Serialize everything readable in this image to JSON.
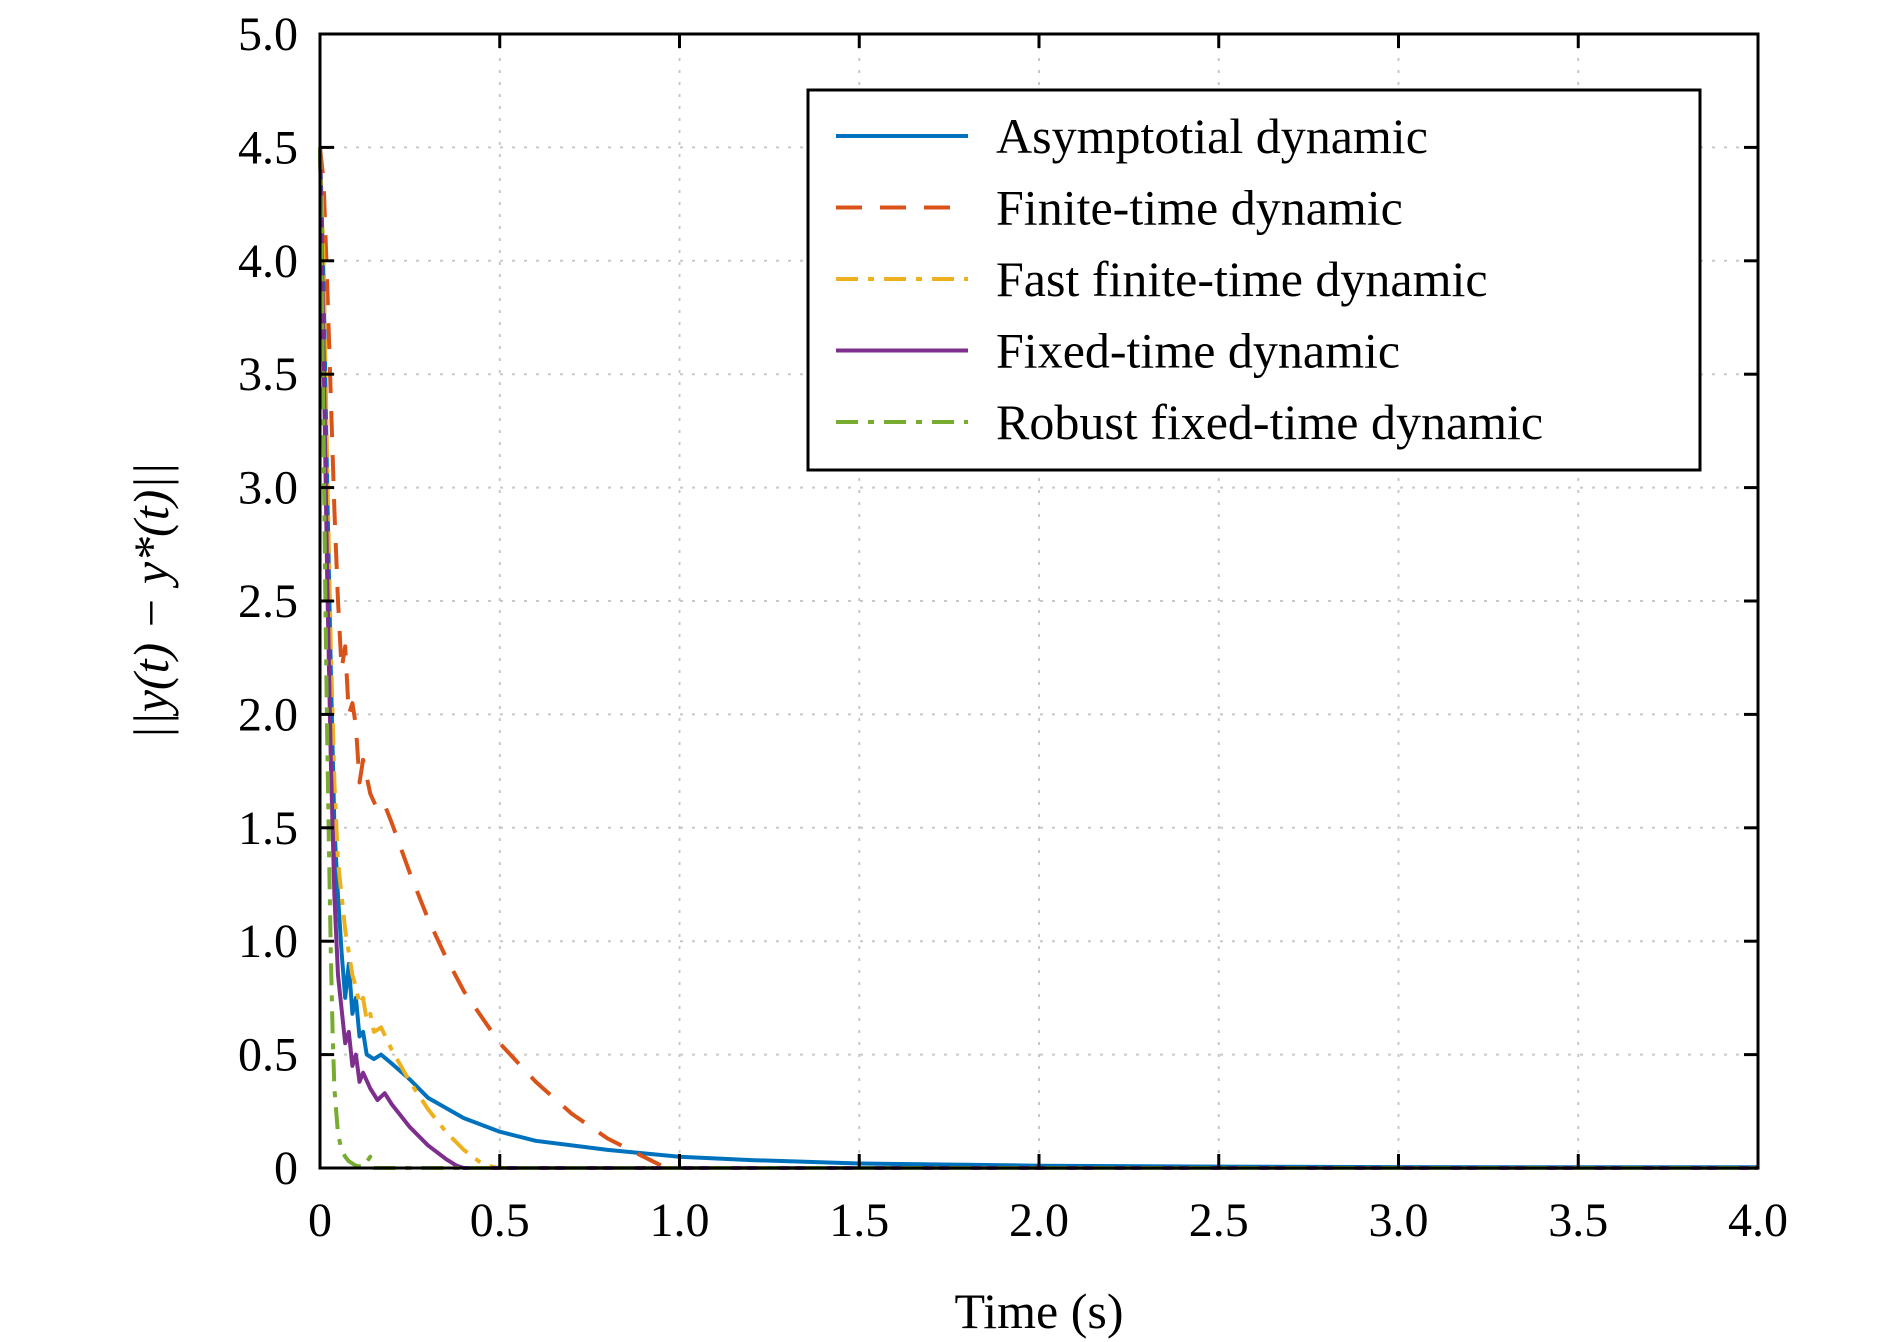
{
  "chart_data": {
    "type": "line",
    "title": "",
    "xlabel": "Time (s)",
    "ylabel": "||y(t) − y*(t)||",
    "xlim": [
      0,
      4.0
    ],
    "ylim": [
      0,
      5.0
    ],
    "x_ticks": [
      0,
      0.5,
      1.0,
      1.5,
      2.0,
      2.5,
      3.0,
      3.5,
      4.0
    ],
    "x_tick_labels": [
      "0",
      "0.5",
      "1.0",
      "1.5",
      "2.0",
      "2.5",
      "3.0",
      "3.5",
      "4.0"
    ],
    "y_ticks": [
      0,
      0.5,
      1.0,
      1.5,
      2.0,
      2.5,
      3.0,
      3.5,
      4.0,
      4.5,
      5.0
    ],
    "y_tick_labels": [
      "0",
      "0.5",
      "1.0",
      "1.5",
      "2.0",
      "2.5",
      "3.0",
      "3.5",
      "4.0",
      "4.5",
      "5.0"
    ],
    "grid": true,
    "legend_position": "top-right",
    "series": [
      {
        "name": "Asymptotial dynamic",
        "color": "#0072BD",
        "dash": "solid",
        "x": [
          0,
          0.01,
          0.02,
          0.03,
          0.04,
          0.05,
          0.06,
          0.07,
          0.08,
          0.09,
          0.1,
          0.11,
          0.12,
          0.13,
          0.15,
          0.17,
          0.2,
          0.25,
          0.3,
          0.4,
          0.5,
          0.6,
          0.8,
          1.0,
          1.2,
          1.5,
          2.0,
          2.5,
          3.0,
          3.5,
          4.0
        ],
        "y": [
          4.5,
          3.9,
          3.0,
          2.2,
          1.5,
          1.2,
          0.95,
          0.75,
          0.9,
          0.68,
          0.75,
          0.58,
          0.6,
          0.5,
          0.48,
          0.5,
          0.46,
          0.39,
          0.31,
          0.22,
          0.16,
          0.12,
          0.08,
          0.05,
          0.035,
          0.02,
          0.01,
          0.006,
          0.004,
          0.003,
          0.003
        ]
      },
      {
        "name": "Finite-time dynamic",
        "color": "#D95319",
        "dash": "dashed",
        "x": [
          0,
          0.01,
          0.02,
          0.03,
          0.04,
          0.05,
          0.06,
          0.07,
          0.08,
          0.09,
          0.1,
          0.11,
          0.12,
          0.14,
          0.16,
          0.18,
          0.2,
          0.25,
          0.3,
          0.35,
          0.4,
          0.5,
          0.6,
          0.7,
          0.8,
          0.9,
          0.95,
          1.0,
          2.0,
          3.0,
          4.0
        ],
        "y": [
          4.5,
          4.35,
          3.9,
          3.4,
          2.9,
          2.5,
          2.2,
          2.3,
          2.0,
          2.05,
          1.95,
          1.7,
          1.8,
          1.65,
          1.58,
          1.6,
          1.52,
          1.3,
          1.1,
          0.93,
          0.78,
          0.55,
          0.38,
          0.24,
          0.13,
          0.05,
          0.01,
          0.0,
          0.0,
          0.0,
          0.0
        ]
      },
      {
        "name": "Fast finite-time dynamic",
        "color": "#EDB120",
        "dash": "dashdot",
        "x": [
          0,
          0.01,
          0.02,
          0.03,
          0.04,
          0.05,
          0.06,
          0.07,
          0.08,
          0.09,
          0.1,
          0.11,
          0.12,
          0.13,
          0.14,
          0.15,
          0.17,
          0.2,
          0.25,
          0.3,
          0.35,
          0.4,
          0.45,
          0.48,
          0.5,
          1.0,
          2.0,
          3.0,
          4.0
        ],
        "y": [
          4.5,
          4.0,
          3.1,
          2.3,
          1.7,
          1.35,
          1.2,
          1.05,
          0.95,
          0.85,
          0.8,
          0.72,
          0.75,
          0.65,
          0.68,
          0.6,
          0.62,
          0.52,
          0.38,
          0.26,
          0.16,
          0.08,
          0.02,
          0.005,
          0.0,
          0.0,
          0.0,
          0.0,
          0.0
        ]
      },
      {
        "name": "Fixed-time dynamic",
        "color": "#7E2F8E",
        "dash": "solid",
        "x": [
          0,
          0.01,
          0.02,
          0.03,
          0.04,
          0.05,
          0.06,
          0.07,
          0.08,
          0.09,
          0.1,
          0.11,
          0.12,
          0.14,
          0.16,
          0.18,
          0.2,
          0.25,
          0.3,
          0.35,
          0.38,
          0.4,
          1.0,
          2.0,
          3.0,
          4.0
        ],
        "y": [
          4.5,
          3.6,
          2.6,
          1.8,
          1.2,
          0.85,
          0.7,
          0.55,
          0.6,
          0.45,
          0.5,
          0.38,
          0.42,
          0.35,
          0.3,
          0.33,
          0.28,
          0.18,
          0.1,
          0.04,
          0.01,
          0.0,
          0.0,
          0.0,
          0.0,
          0.0
        ]
      },
      {
        "name": "Robust fixed-time dynamic",
        "color": "#77AC30",
        "dash": "dashdot",
        "x": [
          0,
          0.005,
          0.01,
          0.015,
          0.02,
          0.025,
          0.03,
          0.035,
          0.04,
          0.05,
          0.06,
          0.07,
          0.08,
          0.09,
          0.1,
          0.12,
          0.14,
          0.15,
          0.16,
          0.2,
          1.0,
          2.0,
          3.0,
          4.0
        ],
        "y": [
          4.5,
          3.9,
          3.2,
          2.5,
          1.9,
          1.4,
          0.95,
          0.6,
          0.35,
          0.15,
          0.08,
          0.05,
          0.03,
          0.02,
          0.01,
          0.005,
          0.05,
          0.0,
          0.0,
          0.0,
          0.0,
          0.0,
          0.0,
          0.0
        ]
      }
    ]
  }
}
